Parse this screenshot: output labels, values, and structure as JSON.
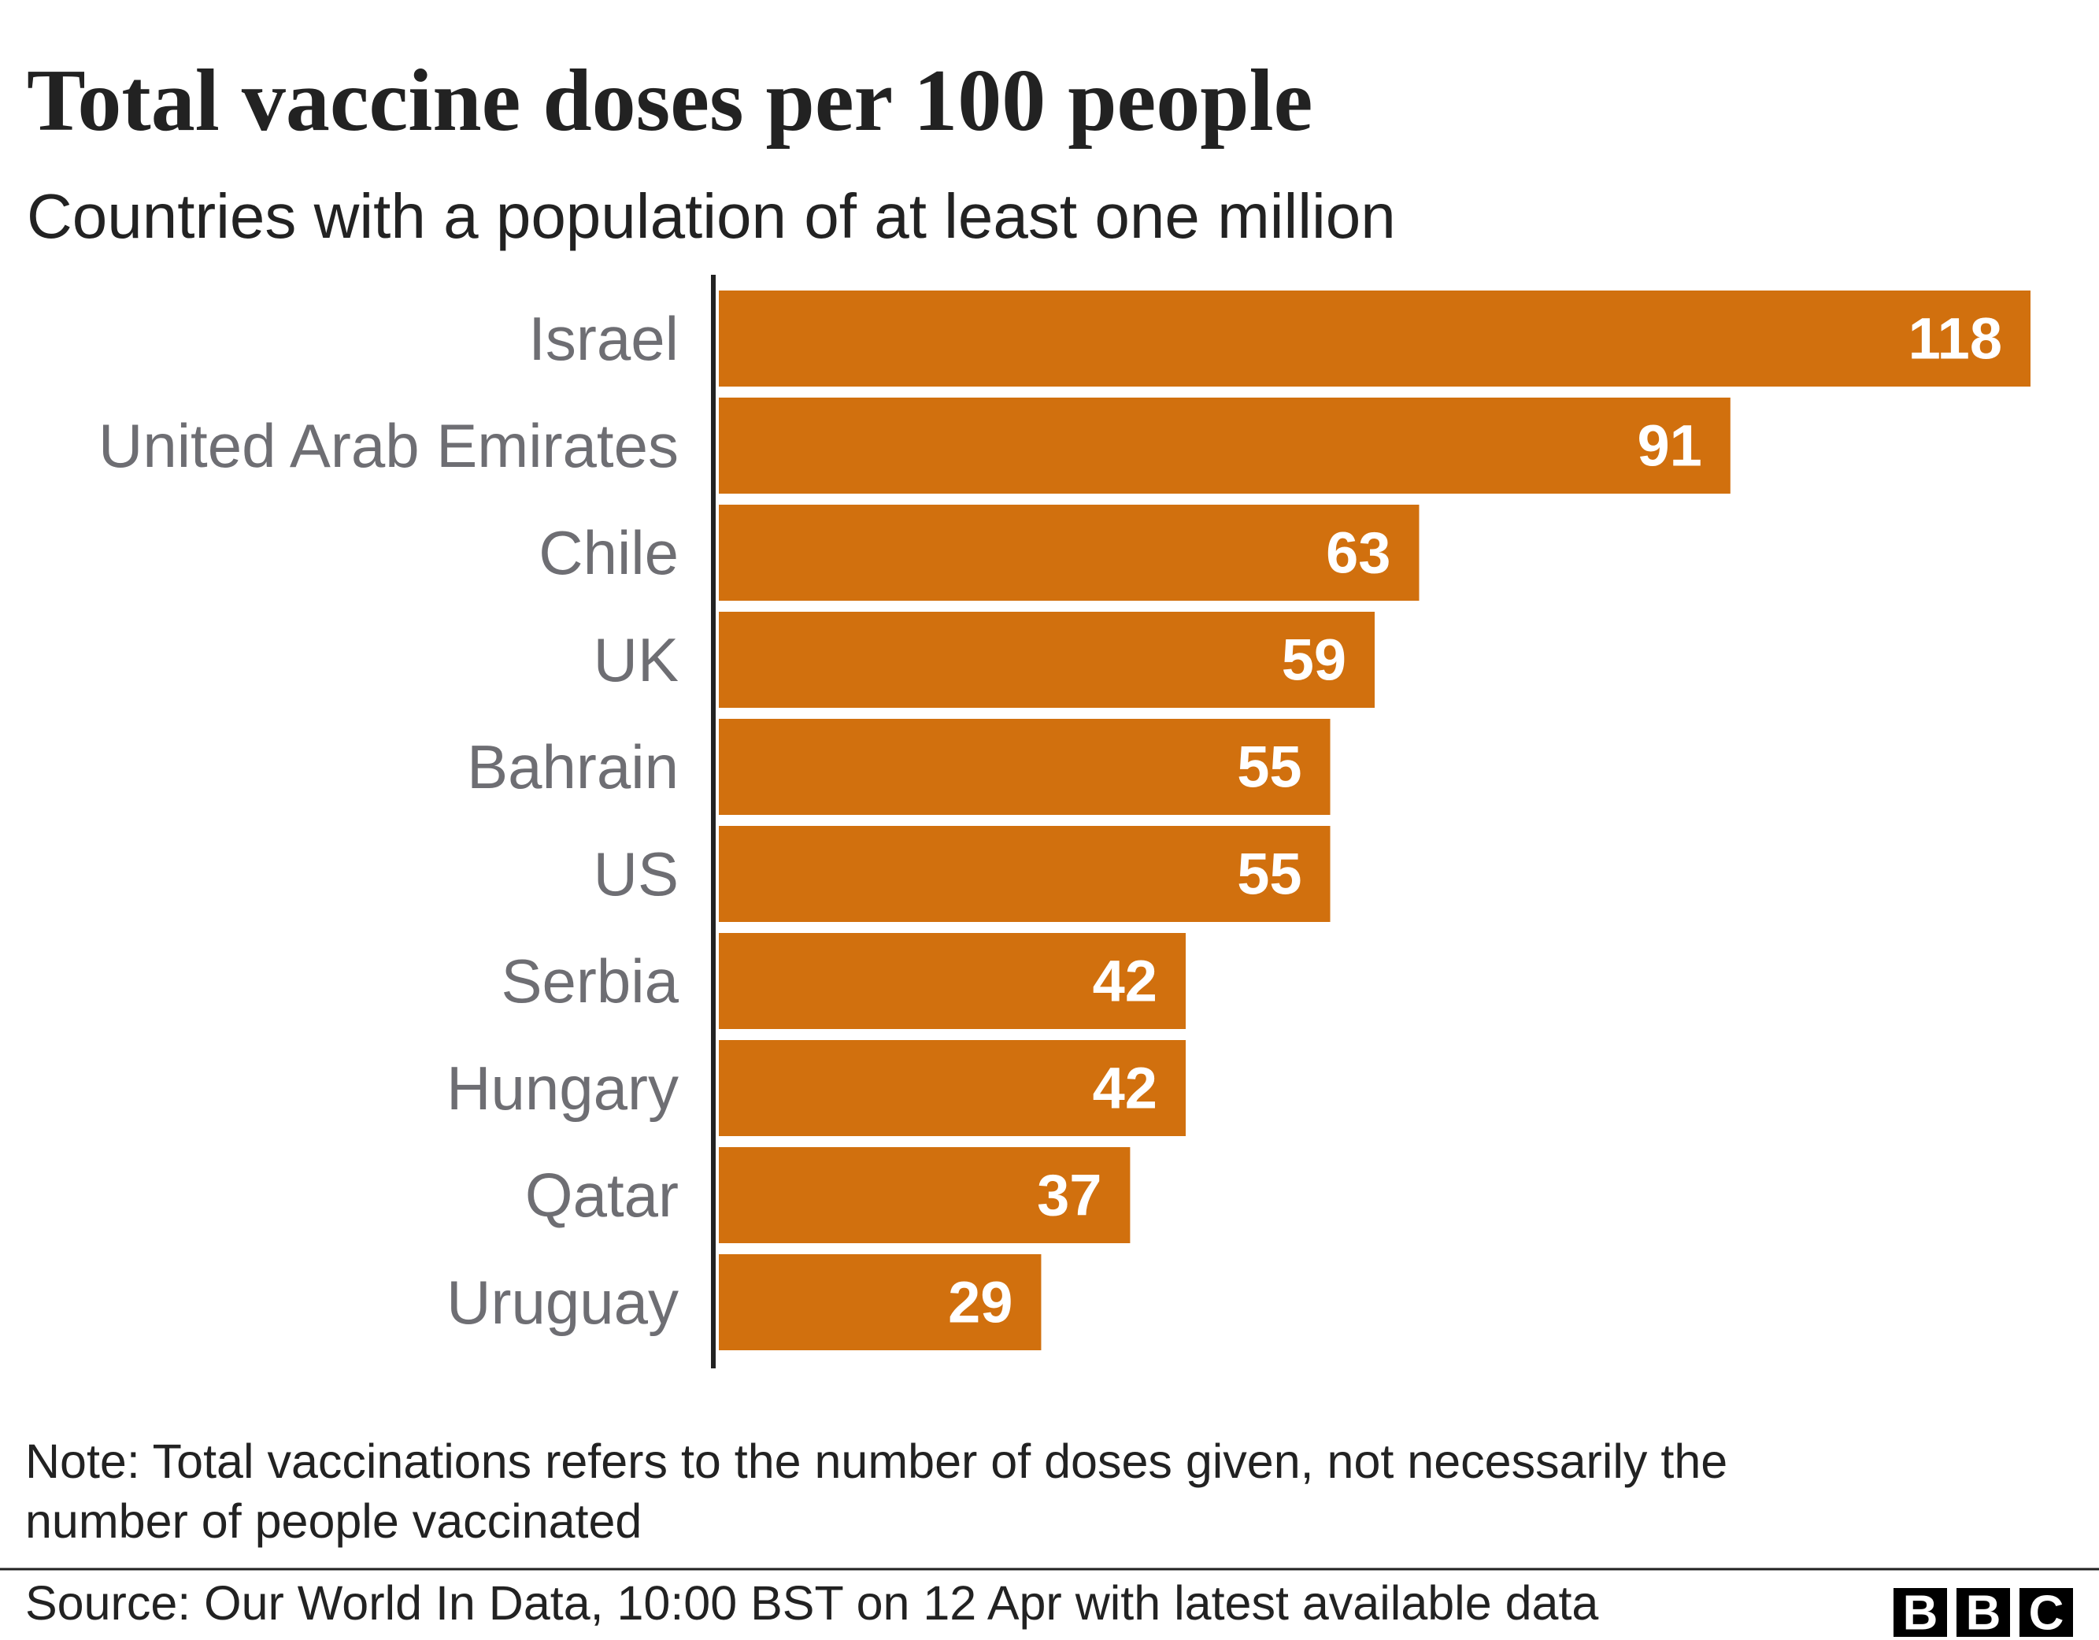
{
  "chart_data": {
    "type": "bar",
    "orientation": "horizontal",
    "title": "Total vaccine doses per 100 people",
    "subtitle": "Countries with a population of at least one million",
    "categories": [
      "Israel",
      "United Arab Emirates",
      "Chile",
      "UK",
      "Bahrain",
      "US",
      "Serbia",
      "Hungary",
      "Qatar",
      "Uruguay"
    ],
    "values": [
      118,
      91,
      63,
      59,
      55,
      55,
      42,
      42,
      37,
      29
    ],
    "color": "#d1700e",
    "note": "Note: Total vaccinations refers to the number of doses given, not necessarily the number of people vaccinated",
    "source": "Source: Our World In Data, 10:00 BST on 12 Apr with latest available data"
  },
  "logo": [
    "B",
    "B",
    "C"
  ]
}
